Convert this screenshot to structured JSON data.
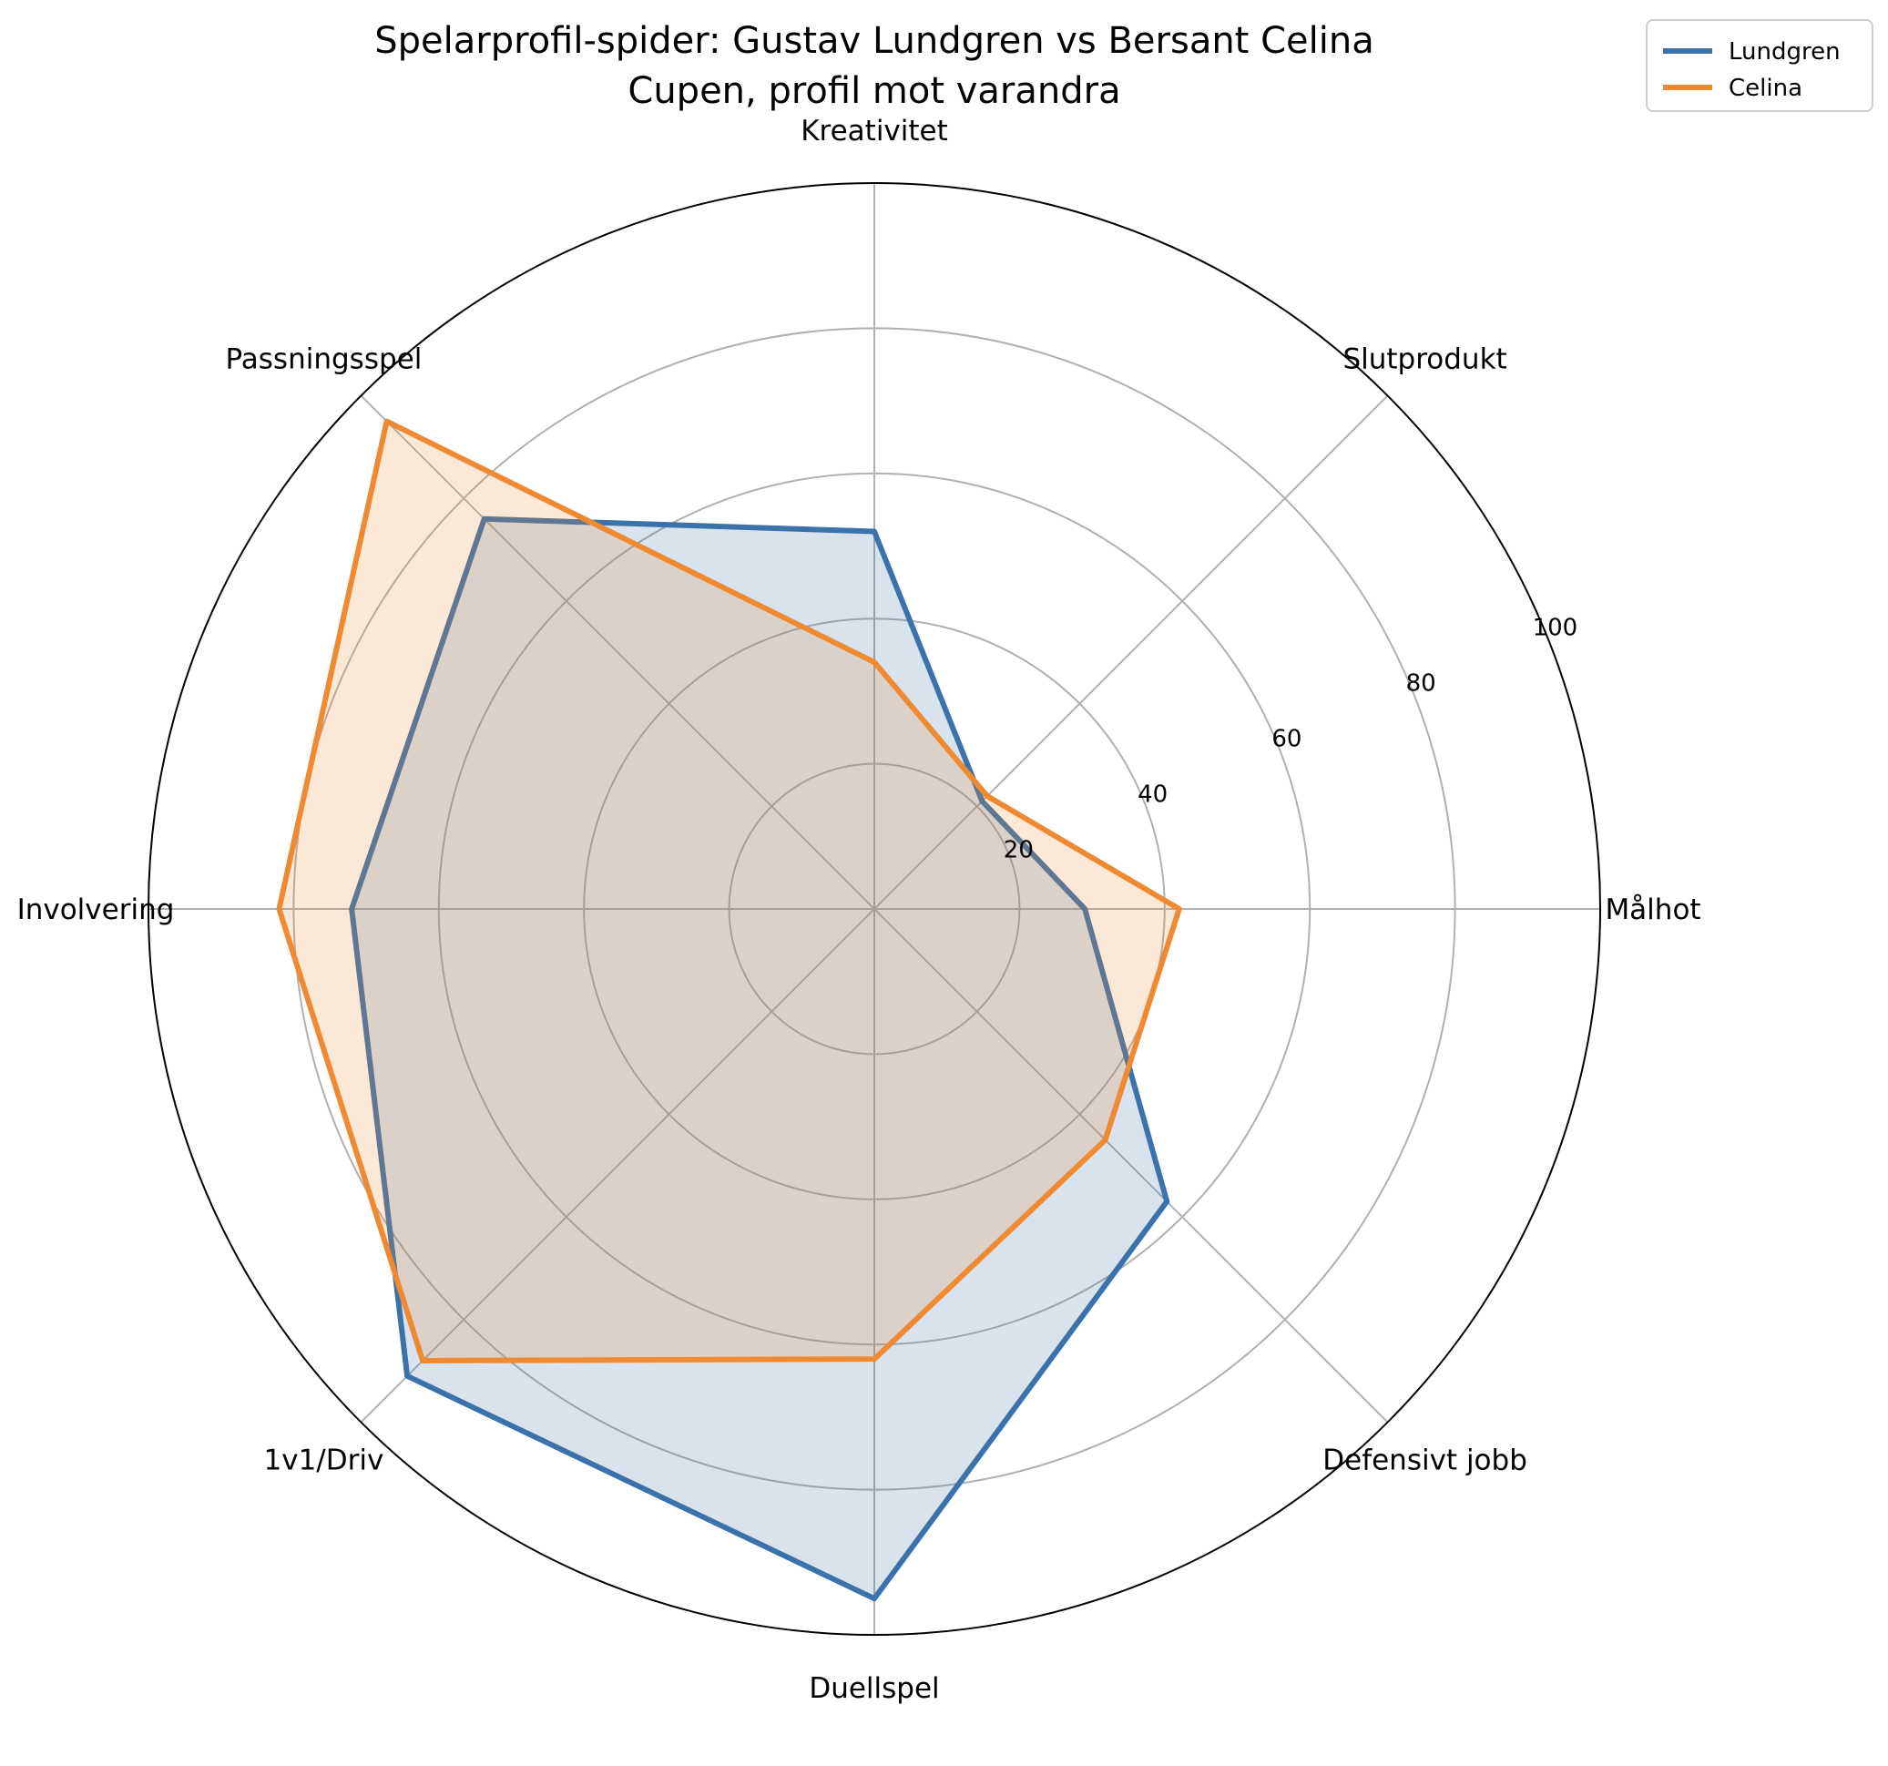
{
  "chart_data": {
    "type": "radar",
    "title": "Spelarprofil-spider: Gustav Lundgren vs Bersant Celina",
    "subtitle": "Cupen, profil mot varandra",
    "categories": [
      "Målhot",
      "Slutprodukt",
      "Kreativitet",
      "Passningsspel",
      "Involvering",
      "1v1/Driv",
      "Duellspel",
      "Defensivt jobb"
    ],
    "series": [
      {
        "name": "Lundgren",
        "color": "#3b72aa",
        "values": [
          29,
          21,
          52,
          76,
          72,
          91,
          95,
          57
        ]
      },
      {
        "name": "Celina",
        "color": "#ef8a32",
        "values": [
          42,
          22,
          34,
          95,
          82,
          88,
          62,
          45
        ]
      }
    ],
    "rlim": [
      0,
      100
    ],
    "rticks": [
      20,
      40,
      60,
      80,
      100
    ],
    "rtick_labels": [
      "20",
      "40",
      "60",
      "80",
      "100"
    ],
    "grid": true,
    "legend_position": "top-right"
  }
}
